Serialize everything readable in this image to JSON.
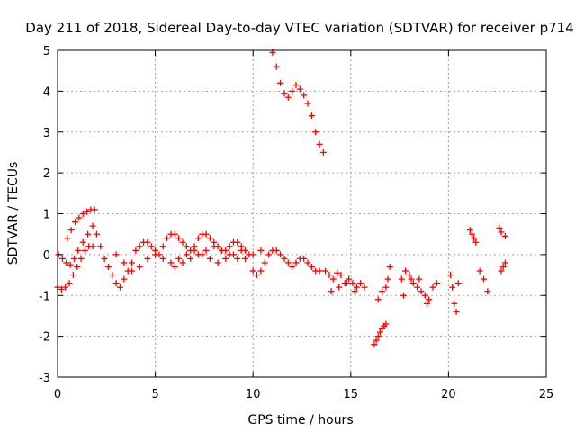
{
  "chart_data": {
    "type": "scatter",
    "title": "Day 211 of 2018, Sidereal Day-to-day VTEC variation (SDTVAR) for receiver p714",
    "xlabel": "GPS time / hours",
    "ylabel": "SDTVAR / TECUs",
    "xlim": [
      0,
      25
    ],
    "ylim": [
      -3,
      5
    ],
    "xticks": [
      "0",
      "5",
      "10",
      "15",
      "20",
      "25"
    ],
    "yticks": [
      "-3",
      "-2",
      "-1",
      "0",
      "1",
      "2",
      "3",
      "4",
      "5"
    ],
    "grid": true,
    "marker": "+",
    "color": "#ff0000",
    "series": [
      {
        "name": "SDTVAR",
        "x": [
          0.0,
          0.2,
          0.4,
          0.6,
          0.8,
          1.0,
          1.2,
          1.4,
          1.6,
          1.8,
          0.05,
          0.25,
          0.45,
          0.65,
          0.85,
          1.05,
          1.3,
          1.55,
          1.8,
          0.5,
          0.7,
          0.9,
          1.1,
          1.3,
          1.5,
          1.7,
          1.9,
          2.0,
          2.2,
          2.4,
          2.6,
          2.8,
          3.0,
          3.2,
          3.4,
          3.6,
          3.8,
          4.0,
          4.2,
          4.4,
          4.6,
          4.8,
          5.0,
          5.2,
          5.4,
          5.6,
          5.8,
          6.0,
          6.2,
          6.4,
          6.6,
          6.8,
          7.0,
          7.2,
          7.4,
          7.6,
          7.8,
          8.0,
          8.2,
          8.4,
          8.6,
          8.8,
          9.0,
          9.2,
          9.4,
          9.6,
          9.8,
          10.0,
          10.2,
          10.4,
          10.6,
          10.8,
          11.0,
          11.2,
          11.4,
          11.6,
          11.8,
          12.0,
          12.2,
          12.4,
          12.6,
          12.8,
          13.0,
          13.2,
          13.4,
          3.0,
          3.4,
          3.8,
          4.2,
          4.6,
          5.0,
          5.4,
          5.8,
          6.2,
          6.6,
          7.0,
          7.4,
          7.8,
          8.2,
          8.6,
          9.0,
          9.4,
          6.0,
          6.4,
          6.8,
          7.2,
          7.6,
          8.0,
          8.4,
          8.8,
          9.2,
          9.6,
          10.0,
          10.4,
          11.0,
          11.2,
          11.4,
          11.6,
          11.8,
          12.0,
          12.2,
          12.4,
          12.6,
          12.8,
          13.0,
          13.2,
          13.4,
          13.6,
          13.7,
          13.9,
          14.1,
          14.3,
          14.5,
          14.7,
          14.9,
          15.1,
          15.3,
          15.5,
          15.7,
          14.0,
          14.4,
          14.8,
          15.2,
          16.2,
          16.3,
          16.4,
          16.5,
          16.6,
          16.7,
          16.8,
          16.4,
          16.6,
          16.8,
          16.9,
          17.0,
          17.6,
          17.8,
          18.0,
          18.2,
          18.4,
          18.6,
          18.8,
          19.0,
          19.2,
          19.4,
          17.7,
          18.1,
          18.5,
          18.9,
          20.1,
          20.2,
          20.3,
          20.4,
          20.5,
          21.1,
          21.2,
          21.3,
          21.4,
          21.6,
          21.8,
          22.0,
          22.6,
          22.7,
          22.8,
          22.9,
          22.7,
          22.9
        ],
        "y": [
          -0.8,
          -0.85,
          -0.8,
          -0.7,
          -0.5,
          -0.3,
          -0.1,
          0.1,
          0.2,
          0.2,
          0.0,
          -0.1,
          -0.2,
          -0.25,
          -0.1,
          0.1,
          0.3,
          0.5,
          0.7,
          0.4,
          0.6,
          0.8,
          0.9,
          1.0,
          1.05,
          1.1,
          1.1,
          0.5,
          0.2,
          -0.1,
          -0.3,
          -0.5,
          -0.7,
          -0.8,
          -0.6,
          -0.4,
          -0.2,
          0.1,
          0.2,
          0.3,
          0.3,
          0.2,
          0.1,
          0.0,
          0.2,
          0.4,
          0.5,
          0.5,
          0.4,
          0.3,
          0.2,
          0.1,
          0.2,
          0.4,
          0.5,
          0.5,
          0.4,
          0.3,
          0.2,
          0.1,
          0.1,
          0.2,
          0.3,
          0.3,
          0.2,
          0.1,
          0.0,
          -0.4,
          -0.5,
          -0.4,
          -0.2,
          0.0,
          0.1,
          0.1,
          0.0,
          -0.1,
          -0.2,
          -0.3,
          -0.2,
          -0.1,
          -0.1,
          -0.2,
          -0.3,
          -0.4,
          -0.4,
          0.0,
          -0.2,
          -0.4,
          -0.3,
          -0.1,
          0.0,
          -0.1,
          -0.2,
          -0.1,
          0.0,
          0.1,
          0.0,
          -0.1,
          -0.2,
          -0.1,
          0.0,
          0.1,
          -0.3,
          -0.2,
          -0.1,
          0.0,
          0.1,
          0.2,
          0.1,
          0.0,
          -0.1,
          -0.1,
          0.0,
          0.1,
          4.95,
          4.6,
          4.2,
          3.95,
          3.85,
          4.0,
          4.15,
          4.05,
          3.9,
          3.7,
          3.4,
          3.0,
          2.7,
          2.5,
          -0.4,
          -0.5,
          -0.6,
          -0.45,
          -0.5,
          -0.7,
          -0.6,
          -0.7,
          -0.8,
          -0.7,
          -0.8,
          -0.9,
          -0.8,
          -0.7,
          -0.9,
          -2.2,
          -2.1,
          -2.0,
          -1.9,
          -1.8,
          -1.75,
          -1.7,
          -1.1,
          -0.9,
          -0.8,
          -0.6,
          -0.3,
          -0.6,
          -0.4,
          -0.5,
          -0.7,
          -0.8,
          -0.9,
          -1.0,
          -1.1,
          -0.8,
          -0.7,
          -1.0,
          -0.6,
          -0.6,
          -1.2,
          -0.5,
          -0.8,
          -1.2,
          -1.4,
          -0.7,
          0.6,
          0.5,
          0.4,
          0.3,
          -0.4,
          -0.6,
          -0.9,
          0.65,
          -0.4,
          -0.3,
          -0.2,
          0.55,
          0.45
        ]
      }
    ]
  }
}
